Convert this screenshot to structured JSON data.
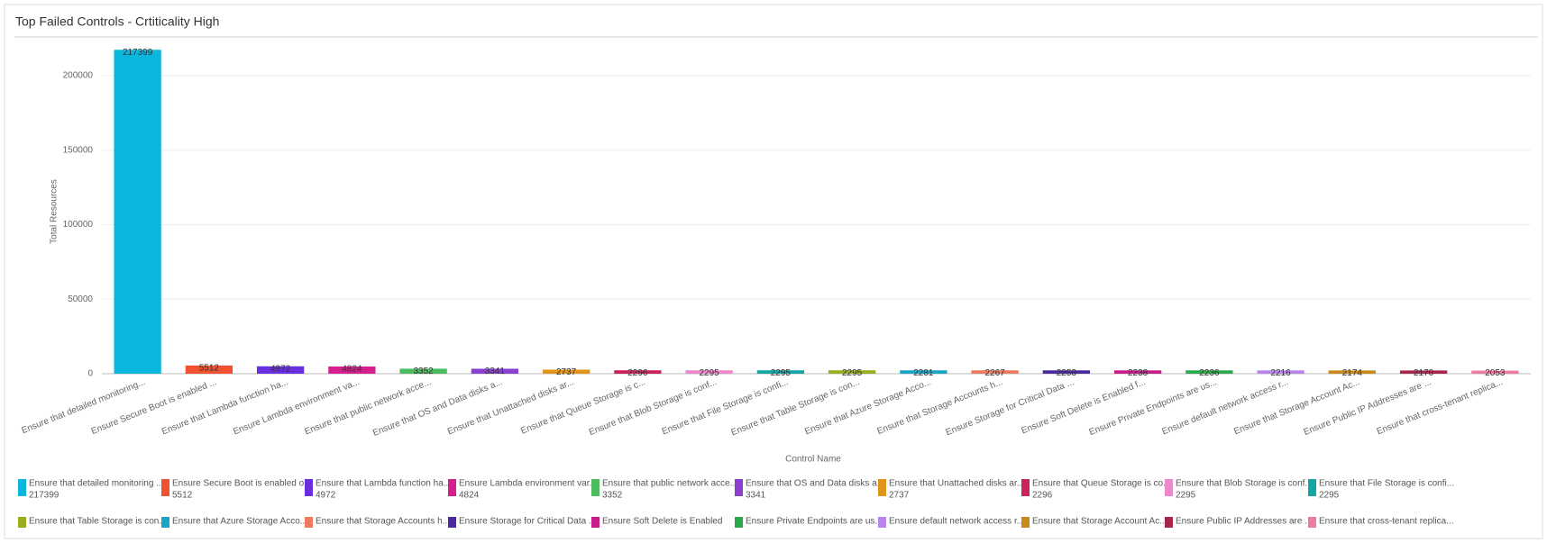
{
  "chart_data": {
    "type": "bar",
    "title": "Top Failed Controls - Crtiticality High",
    "x_label": "Control Name",
    "y_label": "Total Resources",
    "categories": [
      "Ensure that detailed monitoring...",
      "Ensure Secure Boot is enabled ...",
      "Ensure that Lambda function ha...",
      "Ensure Lambda environment va...",
      "Ensure that public network acce...",
      "Ensure that OS and Data disks a...",
      "Ensure that Unattached disks ar...",
      "Ensure that Queue Storage is c...",
      "Ensure that Blob Storage is conf...",
      "Ensure that File Storage is confi...",
      "Ensure that Table Storage is con...",
      "Ensure that Azure Storage Acco...",
      "Ensure that Storage Accounts h...",
      "Ensure Storage for Critical Data ...",
      "Ensure Soft Delete is Enabled f...",
      "Ensure Private Endpoints are us...",
      "Ensure default network access r...",
      "Ensure that Storage Account Ac...",
      "Ensure Public IP Addresses are ...",
      "Ensure that cross-tenant replica..."
    ],
    "legend_labels": [
      "Ensure that detailed monitoring ...",
      "Ensure Secure Boot is enabled o...",
      "Ensure that Lambda function ha...",
      "Ensure Lambda environment var...",
      "Ensure that public network acce...",
      "Ensure that OS and Data disks a...",
      "Ensure that Unattached disks ar...",
      "Ensure that Queue Storage is co...",
      "Ensure that Blob Storage is conf...",
      "Ensure that File Storage is confi...",
      "Ensure that Table Storage is con...",
      "Ensure that Azure Storage Acco...",
      "Ensure that Storage Accounts h...",
      "Ensure Storage for Critical Data ...",
      "Ensure Soft Delete is Enabled",
      "Ensure Private Endpoints are us...",
      "Ensure default network access r...",
      "Ensure that Storage Account Ac...",
      "Ensure Public IP Addresses are ...",
      "Ensure that cross-tenant replica..."
    ],
    "values": [
      217399,
      5512,
      4972,
      4824,
      3352,
      3341,
      2737,
      2296,
      2295,
      2295,
      2295,
      2281,
      2267,
      2253,
      2238,
      2236,
      2216,
      2174,
      2170,
      2053
    ],
    "colors": [
      "#0bb6dc",
      "#f0522f",
      "#6a2ee0",
      "#d61f8f",
      "#4cbb5e",
      "#8a3fcf",
      "#e0941a",
      "#c8245a",
      "#ee88cc",
      "#14a5a5",
      "#9aac1f",
      "#1aa5c5",
      "#f07a5e",
      "#4a2a9e",
      "#c81c8a",
      "#2aa84a",
      "#b883ea",
      "#c8881a",
      "#a8244a",
      "#ee7aa0"
    ],
    "ylim": [
      0,
      220000
    ],
    "yticks": [
      0,
      50000,
      100000,
      150000,
      200000
    ],
    "grid": true
  }
}
